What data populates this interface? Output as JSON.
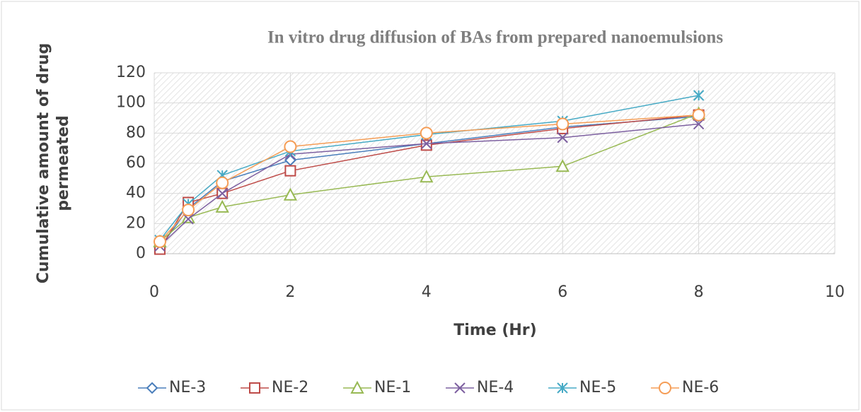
{
  "chart_data": {
    "type": "line",
    "title": "In vitro drug diffusion of BAs from prepared nanoemulsions",
    "xlabel": "Time (Hr)",
    "ylabel": [
      "Cumulative amount of drug",
      "permeated"
    ],
    "x": [
      0.083,
      0.5,
      1,
      2,
      4,
      6,
      8
    ],
    "series": [
      {
        "name": "NE-3",
        "color": "#4a7ebb",
        "marker": "diamond",
        "values": [
          4,
          30,
          48,
          62,
          73,
          84,
          91
        ]
      },
      {
        "name": "NE-2",
        "color": "#be4b48",
        "marker": "square",
        "values": [
          3,
          34,
          40,
          55,
          72,
          83,
          92
        ]
      },
      {
        "name": "NE-1",
        "color": "#98b954",
        "marker": "triangle",
        "values": [
          8,
          24,
          31,
          39,
          51,
          58,
          93
        ]
      },
      {
        "name": "NE-4",
        "color": "#7d60a0",
        "marker": "x",
        "values": [
          5,
          23,
          40,
          66,
          73,
          77,
          86
        ]
      },
      {
        "name": "NE-5",
        "color": "#46aac5",
        "marker": "star",
        "values": [
          9,
          33,
          52,
          68,
          79,
          88,
          105
        ]
      },
      {
        "name": "NE-6",
        "color": "#f59d56",
        "marker": "circle",
        "values": [
          8,
          29,
          47,
          71,
          80,
          86,
          92
        ]
      }
    ],
    "xlim": [
      0,
      10
    ],
    "xticks": [
      0,
      2,
      4,
      6,
      8,
      10
    ],
    "ylim": [
      0,
      120
    ],
    "yticks": [
      0,
      20,
      40,
      60,
      80,
      100,
      120
    ],
    "grid": true,
    "legend": "bottom"
  }
}
